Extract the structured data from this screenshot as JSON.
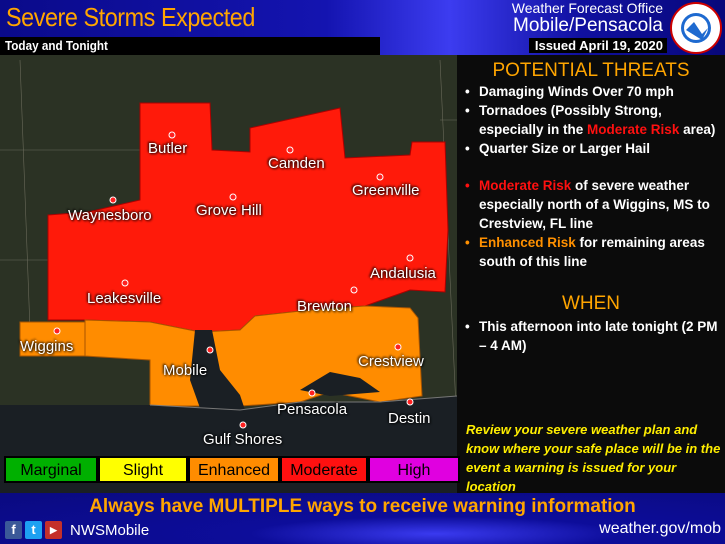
{
  "header": {
    "title": "Severe Storms Expected",
    "subtitle": "Today and Tonight",
    "office_line1": "Weather Forecast Office",
    "office_line2": "Mobile/Pensacola",
    "issued": "Issued April 19, 2020",
    "logo_text": "NATIONAL WEATHER SERVICE"
  },
  "map": {
    "cities": [
      {
        "name": "Butler"
      },
      {
        "name": "Camden"
      },
      {
        "name": "Greenville"
      },
      {
        "name": "Waynesboro"
      },
      {
        "name": "Grove Hill"
      },
      {
        "name": "Andalusia"
      },
      {
        "name": "Leakesville"
      },
      {
        "name": "Brewton"
      },
      {
        "name": "Wiggins"
      },
      {
        "name": "Crestview"
      },
      {
        "name": "Mobile"
      },
      {
        "name": "Pensacola"
      },
      {
        "name": "Destin"
      },
      {
        "name": "Gulf Shores"
      }
    ],
    "colors": {
      "moderate": "#ff1a0a",
      "enhanced": "#ff8c00",
      "water": "#1a1f24"
    }
  },
  "panel": {
    "threats_heading": "POTENTIAL THREATS",
    "threats": [
      "Damaging Winds Over 70 mph",
      "Tornadoes (Possibly Strong, especially in the ",
      "Moderate Risk",
      " area)",
      "Quarter Size or Larger Hail"
    ],
    "moderate_label": "Moderate Risk",
    "moderate_text": " of severe weather especially north of a Wiggins, MS to Crestview, FL line",
    "enhanced_label": "Enhanced Risk",
    "enhanced_text": " for remaining areas south of this line",
    "when_heading": "WHEN",
    "when_text": "This afternoon into late tonight (2 PM – 4 AM)",
    "review": "Review your severe weather plan and know where your safe place will be in the event a warning is issued for your location"
  },
  "legend": [
    {
      "label": "Marginal",
      "color": "#00b000"
    },
    {
      "label": "Slight",
      "color": "#ffff00"
    },
    {
      "label": "Enhanced",
      "color": "#ff8c00"
    },
    {
      "label": "Moderate",
      "color": "#ff1010"
    },
    {
      "label": "High",
      "color": "#e000e0"
    }
  ],
  "footer": {
    "message": "Always have MULTIPLE ways to receive warning information",
    "social_icons": [
      "facebook-icon",
      "twitter-icon",
      "youtube-icon"
    ],
    "handle": "NWSMobile",
    "url": "weather.gov/mob"
  }
}
